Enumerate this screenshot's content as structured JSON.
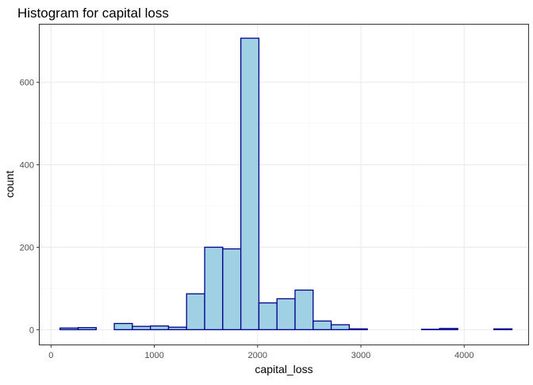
{
  "chart_data": {
    "type": "bar",
    "title": "Histogram for capital loss",
    "xlabel": "capital_loss",
    "ylabel": "count",
    "xlim": [
      -110,
      4620
    ],
    "ylim": [
      -36,
      740
    ],
    "x_ticks": [
      0,
      1000,
      2000,
      3000,
      4000
    ],
    "x_tick_labels": [
      "0",
      "1000",
      "2000",
      "3000",
      "4000"
    ],
    "y_ticks": [
      0,
      200,
      400,
      600
    ],
    "y_tick_labels": [
      "0",
      "200",
      "400",
      "600"
    ],
    "bin_width": 175,
    "bins": [
      {
        "start": 87.5,
        "end": 262.5,
        "count": 4
      },
      {
        "start": 262.5,
        "end": 437.5,
        "count": 5
      },
      {
        "start": 437.5,
        "end": 612.5,
        "count": 0
      },
      {
        "start": 612.5,
        "end": 787.5,
        "count": 15
      },
      {
        "start": 787.5,
        "end": 962.5,
        "count": 8
      },
      {
        "start": 962.5,
        "end": 1137.5,
        "count": 9
      },
      {
        "start": 1137.5,
        "end": 1312.5,
        "count": 6
      },
      {
        "start": 1312.5,
        "end": 1487.5,
        "count": 87
      },
      {
        "start": 1487.5,
        "end": 1662.5,
        "count": 200
      },
      {
        "start": 1662.5,
        "end": 1837.5,
        "count": 196
      },
      {
        "start": 1837.5,
        "end": 2012.5,
        "count": 707
      },
      {
        "start": 2012.5,
        "end": 2187.5,
        "count": 65
      },
      {
        "start": 2187.5,
        "end": 2362.5,
        "count": 75
      },
      {
        "start": 2362.5,
        "end": 2537.5,
        "count": 96
      },
      {
        "start": 2537.5,
        "end": 2712.5,
        "count": 21
      },
      {
        "start": 2712.5,
        "end": 2887.5,
        "count": 12
      },
      {
        "start": 2887.5,
        "end": 3062.5,
        "count": 2
      },
      {
        "start": 3062.5,
        "end": 3237.5,
        "count": 0
      },
      {
        "start": 3237.5,
        "end": 3412.5,
        "count": 0
      },
      {
        "start": 3412.5,
        "end": 3587.5,
        "count": 0
      },
      {
        "start": 3587.5,
        "end": 3762.5,
        "count": 1
      },
      {
        "start": 3762.5,
        "end": 3937.5,
        "count": 3
      },
      {
        "start": 3937.5,
        "end": 4112.5,
        "count": 0
      },
      {
        "start": 4112.5,
        "end": 4287.5,
        "count": 0
      },
      {
        "start": 4287.5,
        "end": 4462.5,
        "count": 2
      }
    ],
    "grid": true,
    "colors": {
      "bar_fill": "#9fd0e3",
      "bar_outline": "#00008b",
      "panel_border": "#333333",
      "grid_major": "#ebebeb",
      "grid_minor": "#f5f5f5",
      "axis_text": "#4d4d4d",
      "title_text": "#000000"
    }
  }
}
